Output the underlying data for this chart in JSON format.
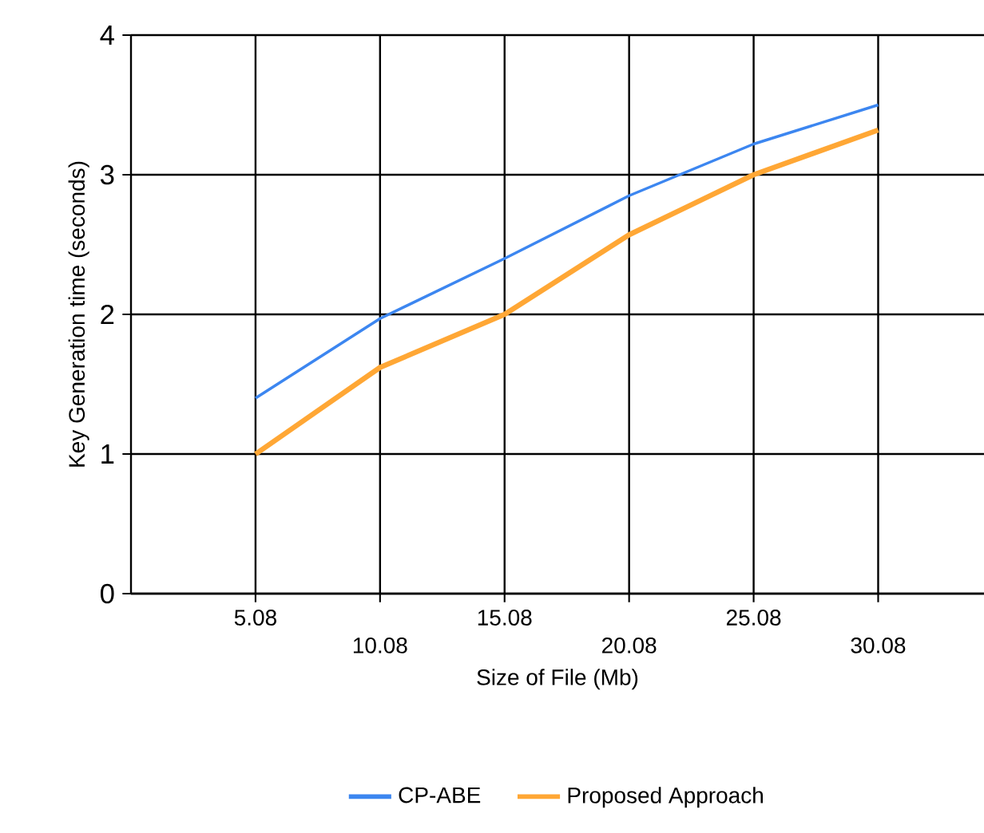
{
  "chart_data": {
    "type": "line",
    "xlabel": "Size of File (Mb)",
    "ylabel": "Key Generation time (seconds)",
    "categories": [
      "5.08",
      "10.08",
      "15.08",
      "20.08",
      "25.08",
      "30.08"
    ],
    "series": [
      {
        "name": "CP-ABE",
        "color": "#3c86f0",
        "values": [
          1.4,
          1.97,
          2.4,
          2.85,
          3.22,
          3.5
        ]
      },
      {
        "name": "Proposed Approach",
        "color": "#ffa735",
        "values": [
          1.0,
          1.62,
          2.0,
          2.57,
          3.0,
          3.32
        ]
      }
    ],
    "ylim": [
      0,
      4
    ],
    "yticks": [
      0,
      1,
      2,
      3,
      4
    ],
    "grid": true,
    "legend": "bottom",
    "marker": "none",
    "line_style": "solid"
  }
}
